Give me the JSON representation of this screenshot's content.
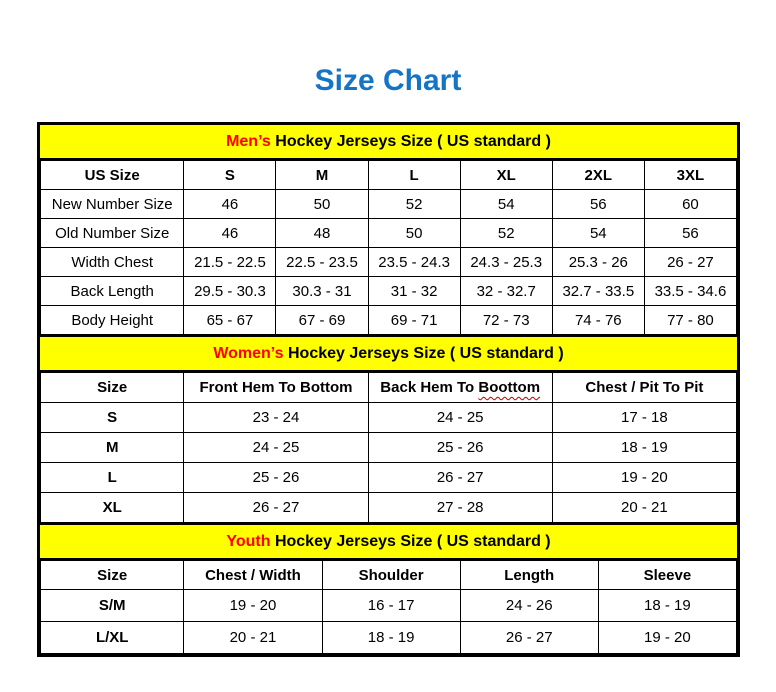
{
  "page": {
    "title": "Size Chart"
  },
  "colors": {
    "title_blue": "#1674C5",
    "band_yellow": "#FFFF00",
    "accent_red": "#FF0000"
  },
  "sections": [
    {
      "band": {
        "highlight": "Men’s",
        "rest": " Hockey Jerseys Size ( US standard )"
      },
      "columns": [
        "US Size",
        "S",
        "M",
        "L",
        "XL",
        "2XL",
        "3XL"
      ],
      "rows": [
        {
          "label": "New Number Size",
          "values": [
            "46",
            "50",
            "52",
            "54",
            "56",
            "60"
          ]
        },
        {
          "label": "Old Number Size",
          "values": [
            "46",
            "48",
            "50",
            "52",
            "54",
            "56"
          ]
        },
        {
          "label": "Width Chest",
          "values": [
            "21.5 - 22.5",
            "22.5 - 23.5",
            "23.5 - 24.3",
            "24.3 - 25.3",
            "25.3 - 26",
            "26 - 27"
          ]
        },
        {
          "label": "Back Length",
          "values": [
            "29.5 - 30.3",
            "30.3 - 31",
            "31 - 32",
            "32 - 32.7",
            "32.7 - 33.5",
            "33.5 - 34.6"
          ]
        },
        {
          "label": "Body Height",
          "values": [
            "65 - 67",
            "67 - 69",
            "69 - 71",
            "72 - 73",
            "74 - 76",
            "77 - 80"
          ]
        }
      ]
    },
    {
      "band": {
        "highlight": "Women’s",
        "rest": " Hockey Jerseys Size ( US standard )"
      },
      "header": {
        "size": "Size",
        "front_hem": "Front Hem To Bottom",
        "back_hem_prefix": "Back Hem To ",
        "back_hem_misspelled": "Boottom",
        "chest": "Chest / Pit To Pit"
      },
      "rows": [
        {
          "label": "S",
          "values": [
            "23 - 24",
            "24 - 25",
            "17 - 18"
          ]
        },
        {
          "label": "M",
          "values": [
            "24 - 25",
            "25 - 26",
            "18 - 19"
          ]
        },
        {
          "label": "L",
          "values": [
            "25 - 26",
            "26 - 27",
            "19 - 20"
          ]
        },
        {
          "label": "XL",
          "values": [
            "26 - 27",
            "27 - 28",
            "20 - 21"
          ]
        }
      ]
    },
    {
      "band": {
        "highlight": "Youth",
        "rest": " Hockey Jerseys Size ( US standard )"
      },
      "columns": [
        "Size",
        "Chest / Width",
        "Shoulder",
        "Length",
        "Sleeve"
      ],
      "rows": [
        {
          "label": "S/M",
          "values": [
            "19 - 20",
            "16 - 17",
            "24 - 26",
            "18 - 19"
          ]
        },
        {
          "label": "L/XL",
          "values": [
            "20 - 21",
            "18 - 19",
            "26 - 27",
            "19 - 20"
          ]
        }
      ]
    }
  ]
}
